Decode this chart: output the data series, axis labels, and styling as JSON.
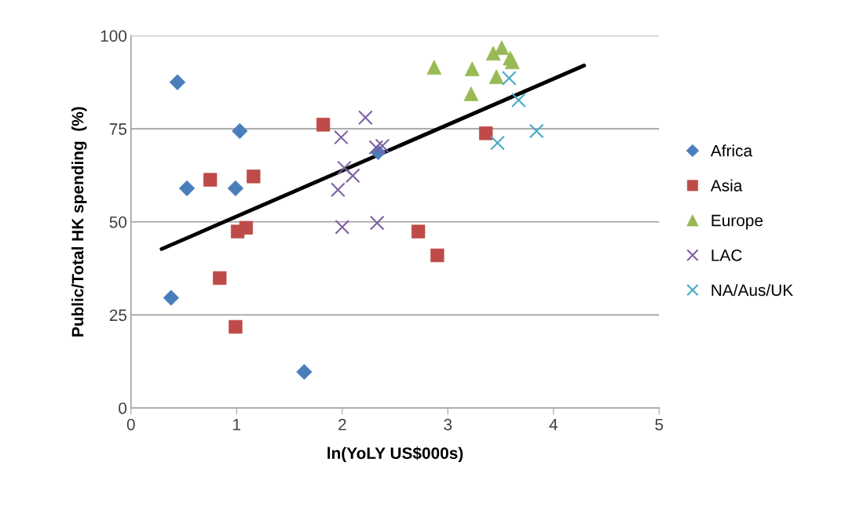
{
  "chart_data": {
    "type": "scatter",
    "xlabel": "ln(YoLY US$000s)",
    "ylabel": "Public/Total HK spending  (%)",
    "xlim": [
      0,
      5
    ],
    "xticks": [
      0,
      1,
      2,
      3,
      4,
      5
    ],
    "ylim": [
      0,
      100
    ],
    "yticks": [
      0,
      25,
      50,
      75,
      100
    ],
    "grid": "y",
    "legend": "right",
    "series": [
      {
        "name": "Africa",
        "color": "#4a7ebb",
        "marker": "diamond",
        "x": [
          0.44,
          1.03,
          0.53,
          0.99,
          0.38,
          1.64,
          2.34
        ],
        "values": [
          87.5,
          74.4,
          59,
          59,
          29.6,
          9.7,
          68.7
        ]
      },
      {
        "name": "Asia",
        "color": "#be4b48",
        "marker": "square",
        "x": [
          0.75,
          1.16,
          1.82,
          1.01,
          1.09,
          0.84,
          0.99,
          2.72,
          2.9,
          3.36
        ],
        "values": [
          61.3,
          62.2,
          76.1,
          47.4,
          48.4,
          34.9,
          21.8,
          47.4,
          41,
          73.8
        ]
      },
      {
        "name": "Europe",
        "color": "#98b954",
        "marker": "triangle",
        "x": [
          2.87,
          3.23,
          3.22,
          3.43,
          3.51,
          3.46,
          3.59,
          3.61
        ],
        "values": [
          91.5,
          91.1,
          84.4,
          95.3,
          96.8,
          89,
          94,
          93
        ]
      },
      {
        "name": "LAC",
        "color": "#7d60a0",
        "marker": "cross",
        "x": [
          2.22,
          1.99,
          2.32,
          2.38,
          2.02,
          2.1,
          1.96,
          2.0,
          2.33
        ],
        "values": [
          78,
          72.7,
          70,
          70.4,
          64.5,
          62.4,
          58.6,
          48.6,
          49.7
        ]
      },
      {
        "name": "NA/Aus/UK",
        "color": "#46aac5",
        "marker": "cross",
        "x": [
          3.58,
          3.67,
          3.84,
          3.47
        ],
        "values": [
          88.6,
          82.7,
          74.4,
          71.2
        ]
      },
      {
        "type": "line",
        "color": "#000000",
        "marker": "none",
        "line_style": "solid",
        "x": [
          0.29,
          4.29
        ],
        "values": [
          42.7,
          92
        ]
      }
    ]
  }
}
